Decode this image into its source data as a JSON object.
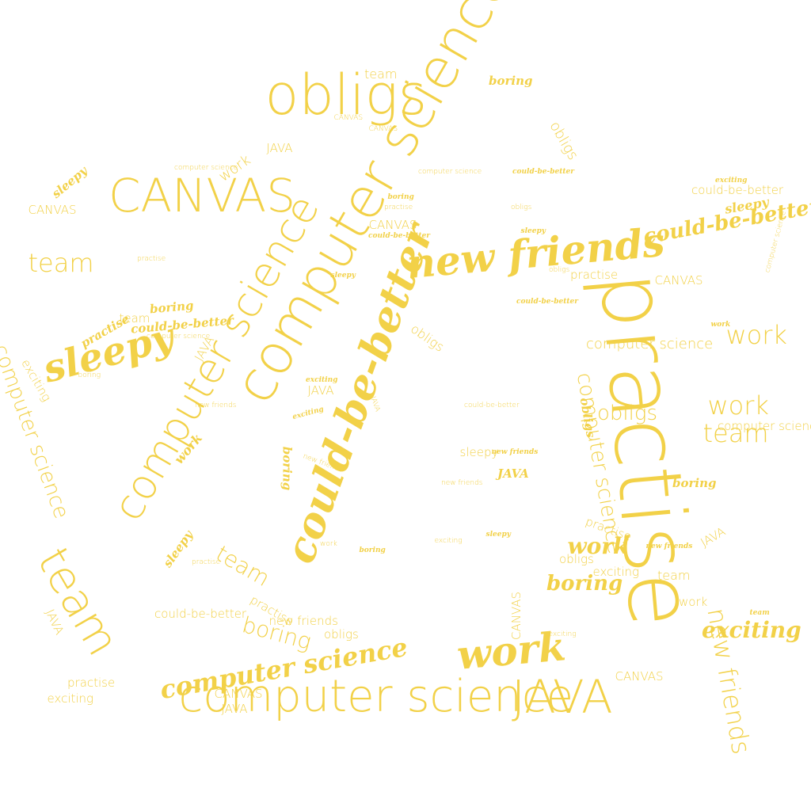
{
  "accent_color": "#f2d148",
  "background_color": "#ffffff",
  "words": [
    "obligs",
    "team",
    "boring",
    "CANVAS",
    "CANVAS",
    "computer science",
    "obligs",
    "JAVA",
    "computer science",
    "work",
    "computer science",
    "could-be-better",
    "sleepy",
    "CANVAS",
    "exciting",
    "could-be-better",
    "CANVAS",
    "boring",
    "practise",
    "obligs",
    "sleepy",
    "CANVAS",
    "could-be-better",
    "sleepy",
    "computer science",
    "team",
    "practise",
    "could-be-better",
    "new friends",
    "obligs",
    "practise",
    "CANVAS",
    "computer science",
    "sleepy",
    "could-be-better",
    "boring",
    "team",
    "could-be-better",
    "sleepy",
    "computer science",
    "JAVA",
    "work",
    "practise",
    "work",
    "obligs",
    "computer science",
    "boring",
    "could-be-better",
    "exciting",
    "exciting",
    "JAVA",
    "JAVA",
    "computer science",
    "could-be-better",
    "exciting",
    "new friends",
    "work",
    "obligs",
    "obligs",
    "team",
    "computer science",
    "computer science",
    "work",
    "new friends",
    "boring",
    "new friends",
    "sleepy",
    "JAVA",
    "new friends",
    "boring",
    "practise",
    "sleepy",
    "work",
    "sleepy",
    "new friends",
    "JAVA",
    "exciting",
    "work",
    "practise",
    "boring",
    "team",
    "team",
    "practise",
    "obligs",
    "boring",
    "exciting",
    "team",
    "JAVA",
    "work",
    "CANVAS",
    "could-be-better",
    "practise",
    "team",
    "boring",
    "exciting",
    "new friends",
    "exciting",
    "obligs",
    "new friends",
    "work",
    "computer science",
    "CANVAS",
    "practise",
    "CANVAS",
    "computer science",
    "exciting",
    "JAVA",
    "JAVA"
  ]
}
